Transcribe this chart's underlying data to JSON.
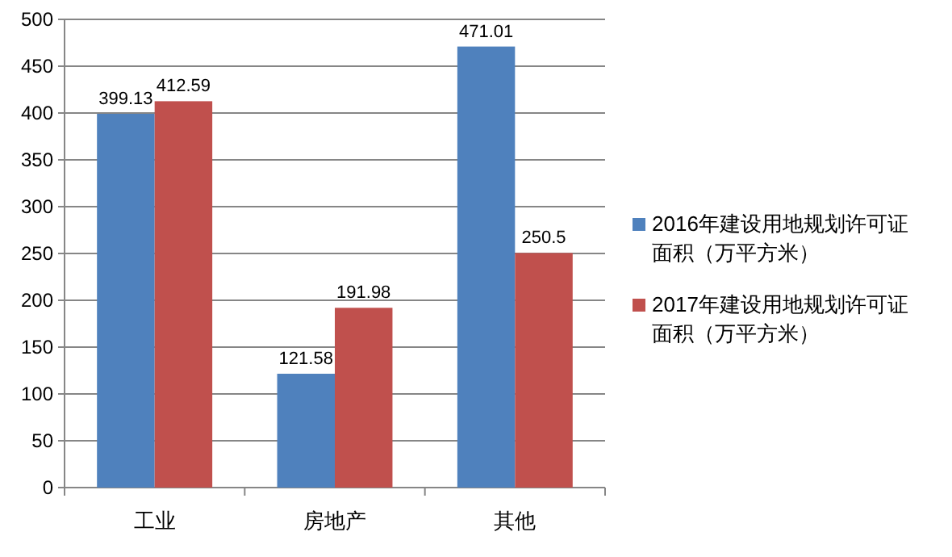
{
  "chart_data": {
    "type": "bar",
    "categories": [
      "工业",
      "房地产",
      "其他"
    ],
    "series": [
      {
        "name": "2016年建设用地规划许可证面积（万平方米）",
        "color": "#4f81bd",
        "values": [
          399.13,
          121.58,
          471.01
        ]
      },
      {
        "name": "2017年建设用地规划许可证面积（万平方米）",
        "color": "#c0504d",
        "values": [
          412.59,
          191.98,
          250.5
        ]
      }
    ],
    "ylim": [
      0,
      500
    ],
    "yticks": [
      0,
      50,
      100,
      150,
      200,
      250,
      300,
      350,
      400,
      450,
      500
    ],
    "grid": "y",
    "legend": "right",
    "data_labels": true
  }
}
